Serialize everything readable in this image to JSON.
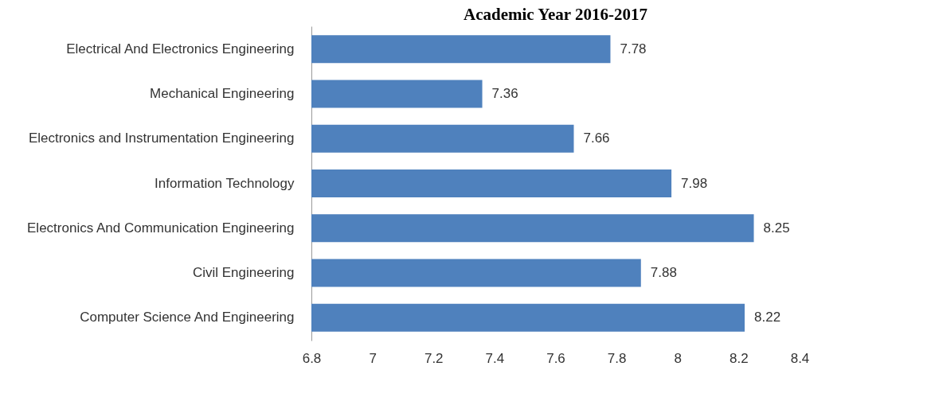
{
  "chart_data": {
    "type": "bar",
    "orientation": "horizontal",
    "title": "Academic Year 2016-2017",
    "categories": [
      "Electrical And Electronics Engineering",
      "Mechanical Engineering",
      "Electronics and Instrumentation  Engineering",
      "Information Technology",
      "Electronics And Communication Engineering",
      "Civil Engineering",
      "Computer Science And Engineering"
    ],
    "values": [
      7.78,
      7.36,
      7.66,
      7.98,
      8.25,
      7.88,
      8.22
    ],
    "color": "#4f81bd",
    "xlim": [
      6.8,
      8.4
    ],
    "xticks": [
      6.8,
      7,
      7.2,
      7.4,
      7.6,
      7.8,
      8,
      8.2,
      8.4
    ],
    "data_labels": true,
    "grid": false,
    "legend": false
  }
}
